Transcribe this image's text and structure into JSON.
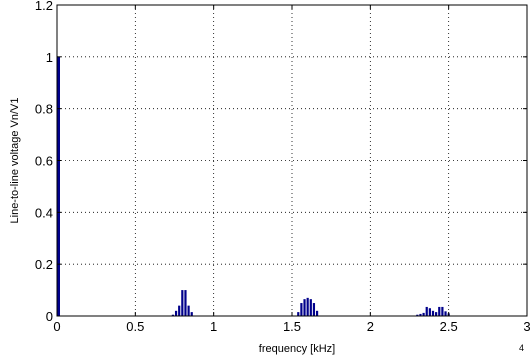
{
  "chart_data": {
    "type": "bar",
    "title": "",
    "xlabel": "frequency [kHz]",
    "ylabel": "Line-to-line voltage Vn/V1",
    "x_exponent_label": "4",
    "xlim": [
      0,
      3
    ],
    "ylim": [
      0,
      1.2
    ],
    "grid": true,
    "bar_color": "#00008b",
    "x_ticks": [
      0,
      0.5,
      1,
      1.5,
      2,
      2.5,
      3
    ],
    "x_tick_labels": [
      "0",
      "0.5",
      "1",
      "1.5",
      "2",
      "2.5",
      "3"
    ],
    "y_ticks": [
      0,
      0.2,
      0.4,
      0.6,
      0.8,
      1,
      1.2
    ],
    "y_tick_labels": [
      "0",
      "0.2",
      "0.4",
      "0.6",
      "0.8",
      "1",
      "1.2"
    ],
    "series": [
      {
        "x": [
          0.002,
          0.74,
          0.76,
          0.78,
          0.8,
          0.82,
          0.84,
          0.86,
          1.54,
          1.56,
          1.58,
          1.6,
          1.62,
          1.64,
          1.66,
          2.3,
          2.32,
          2.34,
          2.36,
          2.38,
          2.4,
          2.42,
          2.44,
          2.46,
          2.48,
          2.5
        ],
        "values": [
          1.0,
          0.005,
          0.02,
          0.04,
          0.1,
          0.1,
          0.04,
          0.015,
          0.015,
          0.05,
          0.065,
          0.07,
          0.065,
          0.05,
          0.02,
          0.005,
          0.008,
          0.012,
          0.035,
          0.03,
          0.02,
          0.015,
          0.035,
          0.035,
          0.018,
          0.01
        ]
      }
    ]
  }
}
